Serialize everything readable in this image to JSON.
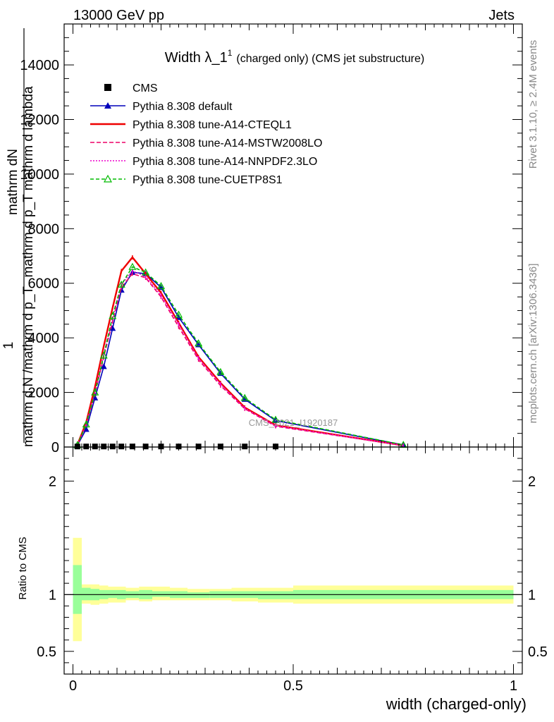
{
  "header": {
    "left": "13000 GeV pp",
    "right": "Jets",
    "title_main": "Width λ_1",
    "title_sup": "1",
    "title_sub": "(charged only) (CMS jet substructure)",
    "rivet_label": "Rivet 3.1.10, ≥ 2.4M events",
    "mcplots_label": "mcplots.cern.ch [arXiv:1306.3436]",
    "watermark": "CMS_2021_I1920187"
  },
  "chart_data": [
    {
      "type": "line",
      "panel": "main",
      "xlabel": "width (charged-only)",
      "ylabel_lines": [
        "mathrm dN",
        "mathrm d p_T mathrm d lambda",
        "1",
        "mathrm d N /mathrm d p_T"
      ],
      "xlim": [
        -0.02,
        1.02
      ],
      "ylim": [
        0,
        15500
      ],
      "y_ticks": [
        {
          "v": 0,
          "label": "0"
        },
        {
          "v": 2000,
          "label": "2000"
        },
        {
          "v": 4000,
          "label": "4000"
        },
        {
          "v": 6000,
          "label": "6000"
        },
        {
          "v": 8000,
          "label": "8000"
        },
        {
          "v": 10000,
          "label": "10000"
        },
        {
          "v": 12000,
          "label": "12000"
        },
        {
          "v": 14000,
          "label": "14000"
        }
      ],
      "legend_position": "top-left",
      "data_series": {
        "name": "CMS",
        "color": "#000000",
        "x": [
          0.01,
          0.03,
          0.05,
          0.07,
          0.09,
          0.11,
          0.135,
          0.165,
          0.2,
          0.24,
          0.285,
          0.335,
          0.39,
          0.46
        ],
        "y": [
          20,
          20,
          20,
          20,
          20,
          20,
          20,
          20,
          20,
          20,
          20,
          20,
          20,
          20
        ]
      },
      "series": [
        {
          "name": "Pythia 8.308 default",
          "color": "#0000bb",
          "dash": "",
          "marker": "filled-triangle",
          "x": [
            0.01,
            0.03,
            0.05,
            0.07,
            0.09,
            0.11,
            0.135,
            0.165,
            0.2,
            0.24,
            0.285,
            0.335,
            0.39,
            0.46,
            0.75
          ],
          "y": [
            60,
            650,
            1800,
            2950,
            4350,
            5750,
            6400,
            6350,
            5850,
            4750,
            3750,
            2700,
            1750,
            970,
            75
          ]
        },
        {
          "name": "Pythia 8.308 tune-A14-CTEQL1",
          "color": "#ee0000",
          "dash": "",
          "marker": "",
          "x": [
            0.01,
            0.03,
            0.05,
            0.07,
            0.09,
            0.11,
            0.135,
            0.165,
            0.2,
            0.24,
            0.285,
            0.335,
            0.39,
            0.46,
            0.75
          ],
          "y": [
            80,
            900,
            2200,
            3700,
            5100,
            6450,
            6950,
            6350,
            5650,
            4550,
            3300,
            2350,
            1450,
            800,
            55
          ]
        },
        {
          "name": "Pythia 8.308 tune-A14-MSTW2008LO",
          "color": "#ee0066",
          "dash": "6,3",
          "marker": "",
          "x": [
            0.01,
            0.03,
            0.05,
            0.07,
            0.09,
            0.11,
            0.135,
            0.165,
            0.2,
            0.24,
            0.285,
            0.335,
            0.39,
            0.46,
            0.75
          ],
          "y": [
            70,
            800,
            1950,
            3300,
            4600,
            5850,
            6350,
            6200,
            5500,
            4400,
            3200,
            2250,
            1400,
            760,
            55
          ]
        },
        {
          "name": "Pythia 8.308 tune-A14-NNPDF2.3LO",
          "color": "#ee00cc",
          "dash": "2,2",
          "marker": "",
          "x": [
            0.01,
            0.03,
            0.05,
            0.07,
            0.09,
            0.11,
            0.135,
            0.165,
            0.2,
            0.24,
            0.285,
            0.335,
            0.39,
            0.46,
            0.75
          ],
          "y": [
            75,
            820,
            2000,
            3400,
            4700,
            5950,
            6450,
            6250,
            5550,
            4500,
            3250,
            2300,
            1420,
            780,
            55
          ]
        },
        {
          "name": "Pythia 8.308 tune-CUETP8S1",
          "color": "#00bb00",
          "dash": "5,3",
          "marker": "open-triangle",
          "x": [
            0.01,
            0.03,
            0.05,
            0.07,
            0.09,
            0.11,
            0.135,
            0.165,
            0.2,
            0.24,
            0.285,
            0.335,
            0.39,
            0.46,
            0.75
          ],
          "y": [
            70,
            830,
            2000,
            3350,
            4800,
            5950,
            6600,
            6400,
            5900,
            4850,
            3800,
            2750,
            1800,
            1000,
            80
          ]
        }
      ]
    },
    {
      "type": "area",
      "panel": "ratio",
      "ylabel": "Ratio to CMS",
      "xlim": [
        -0.02,
        1.02
      ],
      "ylim": [
        0.3,
        2.3
      ],
      "x_ticks": [
        {
          "v": 0,
          "label": "0"
        },
        {
          "v": 0.5,
          "label": "0.5"
        },
        {
          "v": 1,
          "label": "1"
        }
      ],
      "y_ticks": [
        {
          "v": 0.5,
          "label": "0.5"
        },
        {
          "v": 1,
          "label": "1"
        },
        {
          "v": 2,
          "label": "2"
        }
      ],
      "reference_line": 1,
      "band_colors": {
        "outer": "#ffff99",
        "inner": "#99ff99"
      },
      "bins": [
        {
          "x0": 0.0,
          "x1": 0.02,
          "stat_lo": 0.83,
          "stat_hi": 1.26,
          "tot_lo": 0.59,
          "tot_hi": 1.5
        },
        {
          "x0": 0.02,
          "x1": 0.04,
          "stat_lo": 0.95,
          "stat_hi": 1.06,
          "tot_lo": 0.92,
          "tot_hi": 1.09
        },
        {
          "x0": 0.04,
          "x1": 0.06,
          "stat_lo": 0.95,
          "stat_hi": 1.05,
          "tot_lo": 0.91,
          "tot_hi": 1.09
        },
        {
          "x0": 0.06,
          "x1": 0.08,
          "stat_lo": 0.96,
          "stat_hi": 1.04,
          "tot_lo": 0.92,
          "tot_hi": 1.08
        },
        {
          "x0": 0.08,
          "x1": 0.1,
          "stat_lo": 0.97,
          "stat_hi": 1.04,
          "tot_lo": 0.93,
          "tot_hi": 1.07
        },
        {
          "x0": 0.1,
          "x1": 0.12,
          "stat_lo": 0.96,
          "stat_hi": 1.04,
          "tot_lo": 0.93,
          "tot_hi": 1.07
        },
        {
          "x0": 0.12,
          "x1": 0.15,
          "stat_lo": 0.97,
          "stat_hi": 1.03,
          "tot_lo": 0.95,
          "tot_hi": 1.06
        },
        {
          "x0": 0.15,
          "x1": 0.18,
          "stat_lo": 0.96,
          "stat_hi": 1.04,
          "tot_lo": 0.94,
          "tot_hi": 1.07
        },
        {
          "x0": 0.18,
          "x1": 0.22,
          "stat_lo": 0.98,
          "stat_hi": 1.03,
          "tot_lo": 0.95,
          "tot_hi": 1.07
        },
        {
          "x0": 0.22,
          "x1": 0.26,
          "stat_lo": 0.97,
          "stat_hi": 1.03,
          "tot_lo": 0.95,
          "tot_hi": 1.06
        },
        {
          "x0": 0.26,
          "x1": 0.31,
          "stat_lo": 0.97,
          "stat_hi": 1.02,
          "tot_lo": 0.95,
          "tot_hi": 1.05
        },
        {
          "x0": 0.31,
          "x1": 0.36,
          "stat_lo": 0.97,
          "stat_hi": 1.03,
          "tot_lo": 0.95,
          "tot_hi": 1.05
        },
        {
          "x0": 0.36,
          "x1": 0.42,
          "stat_lo": 0.97,
          "stat_hi": 1.03,
          "tot_lo": 0.94,
          "tot_hi": 1.06
        },
        {
          "x0": 0.42,
          "x1": 0.5,
          "stat_lo": 0.96,
          "stat_hi": 1.03,
          "tot_lo": 0.93,
          "tot_hi": 1.06
        },
        {
          "x0": 0.5,
          "x1": 1.0,
          "stat_lo": 0.96,
          "stat_hi": 1.04,
          "tot_lo": 0.92,
          "tot_hi": 1.08
        }
      ]
    }
  ]
}
